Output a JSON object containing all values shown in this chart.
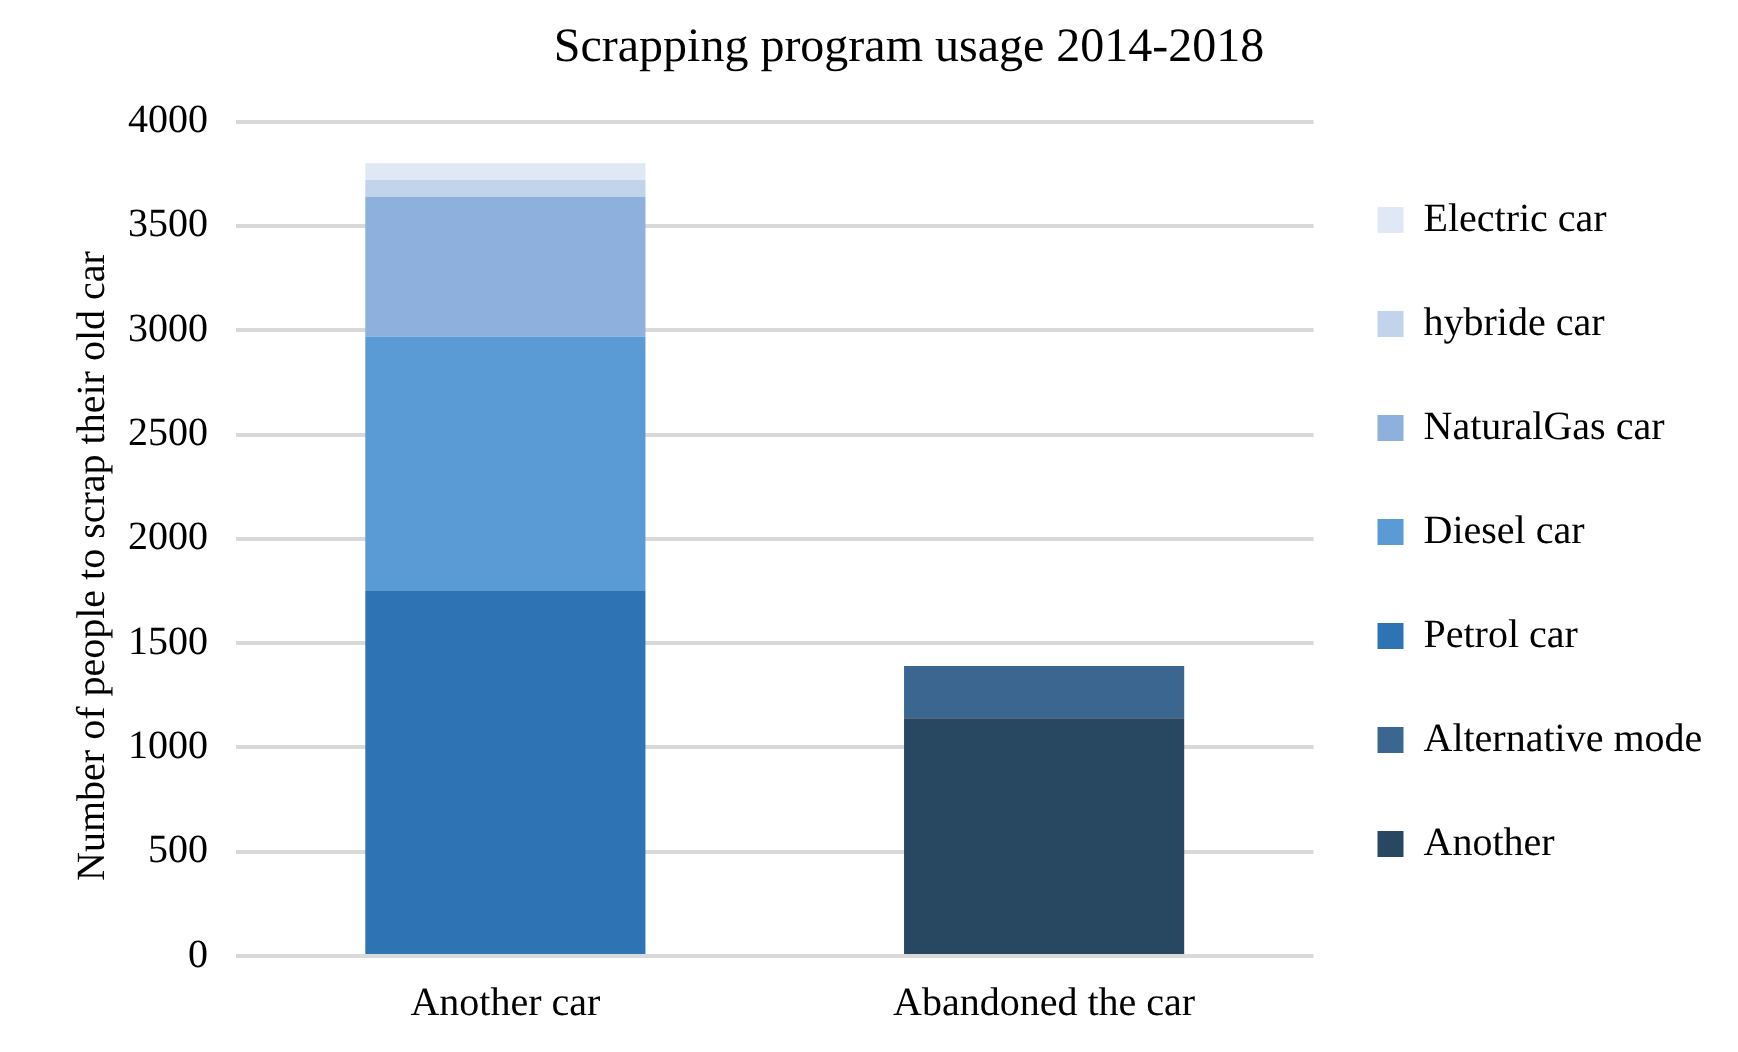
{
  "chart_data": {
    "type": "bar",
    "title": "Scrapping program usage 2014-2018",
    "ylabel": "Number of people to scrap their old car",
    "categories": [
      "Another car",
      "Abandoned the car"
    ],
    "stacked": true,
    "series": [
      {
        "name": "Another",
        "color": "#284760",
        "values": [
          null,
          1140
        ]
      },
      {
        "name": "Alternative mode",
        "color": "#3b668f",
        "values": [
          null,
          250
        ]
      },
      {
        "name": "Petrol car",
        "color": "#2e74b5",
        "values": [
          1750,
          null
        ]
      },
      {
        "name": "Diesel car",
        "color": "#5b9bd5",
        "values": [
          1220,
          null
        ]
      },
      {
        "name": "NaturalGas car",
        "color": "#8db0dc",
        "values": [
          670,
          null
        ]
      },
      {
        "name": "hybride car",
        "color": "#c2d4ec",
        "values": [
          80,
          null
        ]
      },
      {
        "name": "Electric car",
        "color": "#dfe8f4",
        "values": [
          80,
          null
        ]
      }
    ],
    "ylim": [
      0,
      4000
    ],
    "yticks": [
      0,
      500,
      1000,
      1500,
      2000,
      2500,
      3000,
      3500,
      4000
    ],
    "grid": "y",
    "legend": "right"
  }
}
